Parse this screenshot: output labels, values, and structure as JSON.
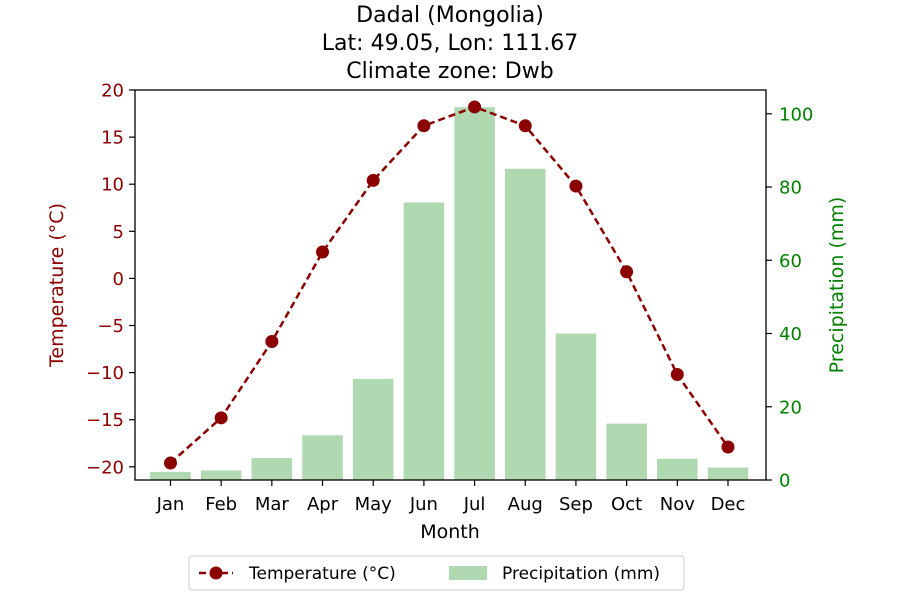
{
  "chart_data": {
    "type": "bar+line",
    "title_lines": [
      "Dadal (Mongolia)",
      "Lat: 49.05, Lon: 111.67",
      "Climate zone: Dwb"
    ],
    "xlabel": "Month",
    "ylabel_left": "Temperature (°C)",
    "ylabel_right": "Precipitation (mm)",
    "categories": [
      "Jan",
      "Feb",
      "Mar",
      "Apr",
      "May",
      "Jun",
      "Jul",
      "Aug",
      "Sep",
      "Oct",
      "Nov",
      "Dec"
    ],
    "ylim_left": [
      -21.4,
      20.0
    ],
    "ylim_right": [
      0,
      106.5
    ],
    "yticks_left": [
      -20,
      -15,
      -10,
      -5,
      0,
      5,
      10,
      15,
      20
    ],
    "yticks_left_labels": [
      "−20",
      "−15",
      "−10",
      "−5",
      "0",
      "5",
      "10",
      "15",
      "20"
    ],
    "yticks_right": [
      0,
      20,
      40,
      60,
      80,
      100
    ],
    "yticks_right_labels": [
      "0",
      "20",
      "40",
      "60",
      "80",
      "100"
    ],
    "series": [
      {
        "name": "Temperature (°C)",
        "kind": "line",
        "axis": "left",
        "color": "#8b0000",
        "values": [
          -19.6,
          -14.8,
          -6.7,
          2.8,
          10.4,
          16.2,
          18.2,
          16.2,
          9.8,
          0.7,
          -10.2,
          -17.9
        ]
      },
      {
        "name": "Precipitation (mm)",
        "kind": "bar",
        "axis": "right",
        "color": "#b1d9b1",
        "values": [
          2.2,
          2.6,
          6.0,
          12.2,
          27.6,
          75.8,
          101.8,
          85.0,
          40.0,
          15.4,
          5.8,
          3.4
        ]
      }
    ],
    "grid": false,
    "legend_position": "bottom-center",
    "colors": {
      "left_axis": "#8b0000",
      "right_axis": "#008000",
      "text": "#000000"
    }
  }
}
